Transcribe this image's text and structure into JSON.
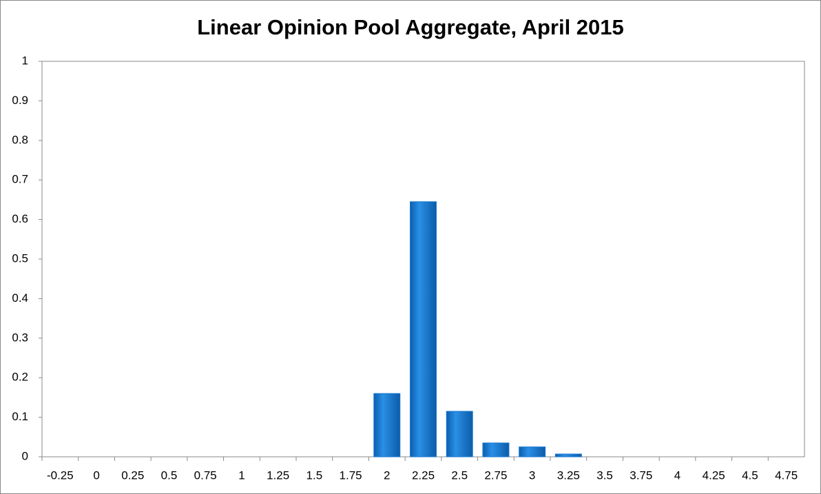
{
  "chart_data": {
    "type": "bar",
    "title": "Linear Opinion Pool Aggregate, April 2015",
    "categories": [
      "-0.25",
      "0",
      "0.25",
      "0.5",
      "0.75",
      "1",
      "1.25",
      "1.5",
      "1.75",
      "2",
      "2.25",
      "2.5",
      "2.75",
      "3",
      "3.25",
      "3.5",
      "3.75",
      "4",
      "4.25",
      "4.5",
      "4.75"
    ],
    "values": [
      0,
      0,
      0,
      0,
      0,
      0,
      0,
      0,
      0,
      0.16,
      0.645,
      0.115,
      0.035,
      0.025,
      0.007,
      0,
      0,
      0,
      0,
      0,
      0
    ],
    "color": "#1677d2",
    "ylim": [
      0,
      1
    ],
    "yticks": [
      0,
      0.1,
      0.2,
      0.3,
      0.4,
      0.5,
      0.6,
      0.7,
      0.8,
      0.9,
      1
    ],
    "grid": false
  }
}
